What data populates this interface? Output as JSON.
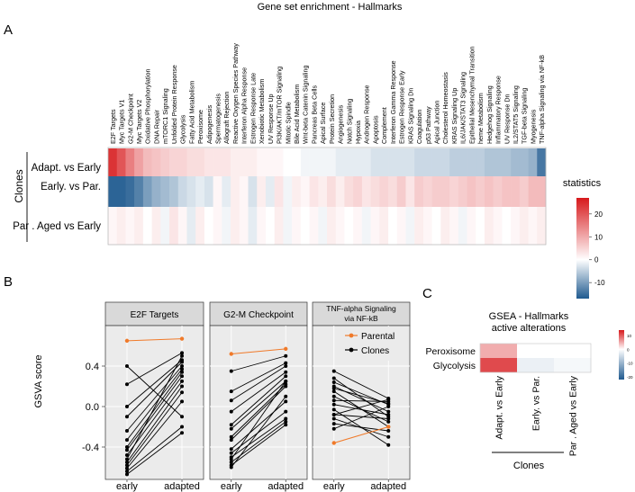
{
  "panel_letters": {
    "a": "A",
    "b": "B",
    "c": "C"
  },
  "chart_data": [
    {
      "type": "heatmap",
      "id": "panel-a",
      "title": "Gene set enrichment - Hallmarks",
      "row_group_label": "Clones",
      "rows": [
        "Adapt. vs Early",
        "Early. vs Par.",
        "Par . Aged vs Early"
      ],
      "columns": [
        "E2F Targets",
        "Myc Targets V1",
        "G2-M Checkpoint",
        "Myc Targets V2",
        "Oxidative Phosphorylation",
        "DNA Repair",
        "mTORC1 Signaling",
        "Unfolded Protein Response",
        "Glycolysis",
        "Fatty Acid Metabolism",
        "Peroxisome",
        "Adipogenesis",
        "Spermatogenesis",
        "Allograft Rejection",
        "Reactive Oxygen Species Pathway",
        "Interferon Alpha Response",
        "Estrogen Response Late",
        "Xenobiotic Metabolism",
        "UV Response Up",
        "PI3K/AKT/mTOR Signaling",
        "Mitotic Spindle",
        "Bile Acid Metabolism",
        "Wnt-beta Catenin Signaling",
        "Pancreas Beta Cells",
        "Apical Surface",
        "Protein Secretion",
        "Angiogenesis",
        "Notch Signaling",
        "Hypoxia",
        "Androgen Response",
        "Apoptosis",
        "Complement",
        "Interferon Gamma Response",
        "Estrogen Response Early",
        "KRAS Signaling Dn",
        "Coagulation",
        "p53 Pathway",
        "Apical Junction",
        "Cholesterol Homeostasis",
        "KRAS Signaling Up",
        "IL6/JAK/STAT3 Signaling",
        "Epithelial Mesenchymal Transition",
        "heme Metabolism",
        "Hedgehog Signaling",
        "Inflammatory Response",
        "UV Response Dn",
        "IL2/STAT5 Signaling",
        "TGF-beta Signaling",
        "Myogenesis",
        "TNF-alpha Signaling via NF-kB"
      ],
      "values": [
        [
          24,
          20,
          15,
          11,
          8,
          7,
          6,
          5,
          5,
          4,
          4,
          3,
          3,
          3,
          2,
          2,
          2,
          1,
          1,
          1,
          0,
          0,
          -1,
          -1,
          -1,
          -1,
          -2,
          -2,
          -2,
          -2,
          -3,
          -3,
          -3,
          -3,
          -3,
          -4,
          -4,
          -4,
          -4,
          -5,
          -5,
          -5,
          -5,
          -6,
          -6,
          -6,
          -7,
          -7,
          -8,
          -14
        ],
        [
          -16,
          -16,
          -15,
          -13,
          -10,
          -8,
          -7,
          -6,
          -4,
          -3,
          -2,
          -3,
          1,
          -2,
          2,
          1,
          -3,
          2,
          -2,
          3,
          -1,
          2,
          1,
          3,
          2,
          4,
          2,
          4,
          5,
          3,
          4,
          5,
          4,
          6,
          3,
          6,
          5,
          6,
          6,
          5,
          6,
          7,
          6,
          7,
          6,
          7,
          7,
          6,
          8,
          8
        ],
        [
          1,
          2,
          1,
          2,
          0,
          2,
          -1,
          3,
          1,
          -2,
          2,
          0,
          1,
          -1,
          2,
          1,
          -2,
          1,
          0,
          2,
          -1,
          1,
          0,
          1,
          -1,
          2,
          1,
          0,
          1,
          -1,
          1,
          2,
          0,
          1,
          -1,
          2,
          1,
          0,
          2,
          1,
          -1,
          1,
          0,
          2,
          1,
          0,
          1,
          2,
          1,
          2
        ]
      ],
      "colorbar": {
        "title": "statistics",
        "ticks": [
          20,
          10,
          0,
          -10
        ],
        "range": [
          -17,
          27
        ]
      },
      "colors": {
        "high": "#d7191c",
        "mid": "#ffffff",
        "low": "#1f5a8f"
      }
    },
    {
      "type": "line",
      "id": "panel-b",
      "ylabel": "GSVA score",
      "ylim": [
        -0.72,
        0.8
      ],
      "yticks": [
        0.4,
        0.0,
        -0.4
      ],
      "ytick_labels": [
        "0.4",
        "0.0",
        "-0.4"
      ],
      "x_categories": [
        "early",
        "adapted"
      ],
      "legend": {
        "Parental": "Parental",
        "Clones": "Clones"
      },
      "series_colors": {
        "Parental": "#f07a2a",
        "Clones": "#000000"
      },
      "facets": [
        {
          "title": [
            "E2F Targets"
          ],
          "parental": [
            0.65,
            0.67
          ],
          "clones": [
            [
              0.4,
              -0.1
            ],
            [
              0.22,
              0.53
            ],
            [
              0.0,
              0.46
            ],
            [
              -0.1,
              0.44
            ],
            [
              -0.24,
              0.4
            ],
            [
              -0.33,
              0.37
            ],
            [
              -0.4,
              0.34
            ],
            [
              -0.43,
              0.3
            ],
            [
              -0.48,
              0.25
            ],
            [
              -0.52,
              0.5
            ],
            [
              -0.55,
              0.2
            ],
            [
              -0.58,
              0.14
            ],
            [
              -0.61,
              0.05
            ],
            [
              -0.64,
              -0.2
            ],
            [
              -0.67,
              -0.26
            ]
          ]
        },
        {
          "title": [
            "G2-M Checkpoint"
          ],
          "parental": [
            0.52,
            0.57
          ],
          "clones": [
            [
              0.35,
              0.5
            ],
            [
              0.15,
              0.43
            ],
            [
              0.06,
              0.4
            ],
            [
              -0.05,
              0.34
            ],
            [
              -0.18,
              0.3
            ],
            [
              -0.22,
              0.25
            ],
            [
              -0.3,
              0.22
            ],
            [
              -0.33,
              0.2
            ],
            [
              -0.42,
              0.05
            ],
            [
              -0.46,
              -0.05
            ],
            [
              -0.5,
              -0.12
            ],
            [
              -0.52,
              0.25
            ],
            [
              -0.55,
              -0.15
            ],
            [
              -0.58,
              -0.18
            ],
            [
              -0.6,
              0.1
            ]
          ]
        },
        {
          "title": [
            "TNF-alpha Signaling",
            "via NF-kB"
          ],
          "parental": [
            -0.36,
            -0.2
          ],
          "clones": [
            [
              0.35,
              0.08
            ],
            [
              0.28,
              -0.1
            ],
            [
              0.24,
              0.02
            ],
            [
              0.2,
              -0.05
            ],
            [
              0.15,
              -0.2
            ],
            [
              0.1,
              -0.15
            ],
            [
              0.06,
              0.05
            ],
            [
              0.02,
              -0.08
            ],
            [
              -0.03,
              -0.38
            ],
            [
              -0.08,
              0.07
            ],
            [
              -0.12,
              -0.3
            ],
            [
              -0.17,
              -0.24
            ],
            [
              -0.22,
              0.0
            ],
            [
              -0.08,
              -0.12
            ],
            [
              0.18,
              0.03
            ]
          ]
        }
      ]
    },
    {
      "type": "heatmap",
      "id": "panel-c",
      "title": [
        "GSEA - Hallmarks",
        "active alterations"
      ],
      "rows": [
        "Peroxisome",
        "Glycolysis"
      ],
      "columns": [
        "Adapt. vs Early",
        "Early. vs Par.",
        "Par . Aged vs Early"
      ],
      "col_group_label": "Clones",
      "values": [
        [
          5,
          0,
          0
        ],
        [
          11,
          -2,
          -1
        ]
      ],
      "colorbar": {
        "ticks": [
          10,
          0,
          -10,
          -20
        ],
        "range": [
          -22,
          14
        ]
      },
      "colors": {
        "high": "#d7191c",
        "mid": "#ffffff",
        "low": "#1f5a8f"
      }
    }
  ]
}
